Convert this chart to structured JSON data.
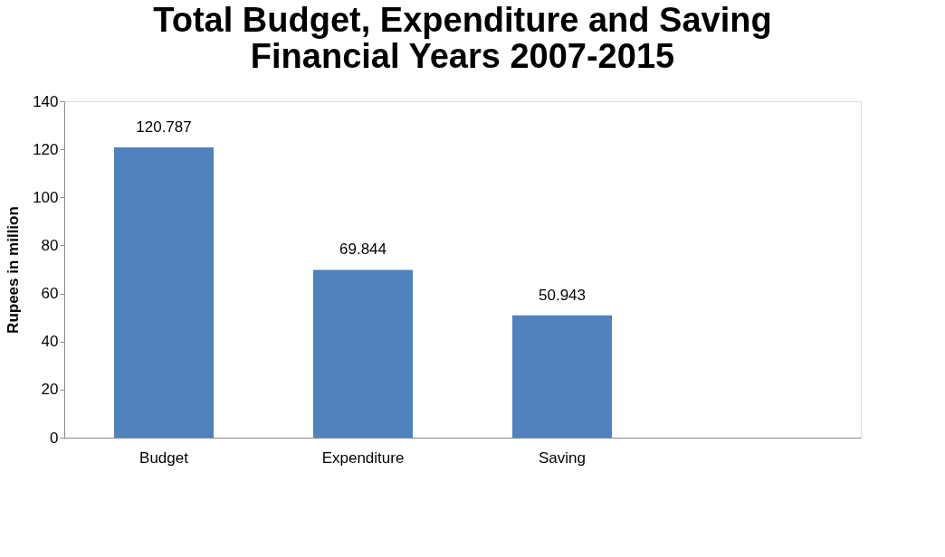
{
  "chart_data": {
    "type": "bar",
    "title": "Total Budget, Expenditure and Saving\nFinancial Years 2007-2015",
    "ylabel": "Rupees in million",
    "categories": [
      "Budget",
      "Expenditure",
      "Saving",
      null
    ],
    "values": [
      120.787,
      69.844,
      50.943,
      null
    ],
    "color": "#4f81bd",
    "ylim": [
      0,
      140
    ],
    "yticks": [
      0,
      20,
      40,
      60,
      80,
      100,
      120,
      140
    ],
    "grid": false,
    "data_labels": true
  }
}
